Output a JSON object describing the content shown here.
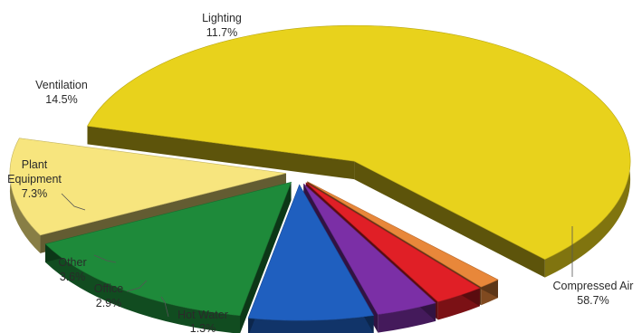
{
  "chart_data": {
    "type": "pie",
    "title": "",
    "exploded": true,
    "style": "3d",
    "legend": "none",
    "slices": [
      {
        "label": "Compressed Air",
        "value": 58.7,
        "value_label": "58.7%",
        "color": "#e8d21c"
      },
      {
        "label": "Hot Water",
        "value": 1.3,
        "value_label": "1.3%",
        "color": "#e8873a"
      },
      {
        "label": "Office",
        "value": 2.9,
        "value_label": "2.9%",
        "color": "#e01f26"
      },
      {
        "label": "Other",
        "value": 3.6,
        "value_label": "3.6%",
        "color": "#7b2fa6"
      },
      {
        "label": "Plant\nEquipment",
        "value": 7.3,
        "value_label": "7.3%",
        "color": "#1f5fbf"
      },
      {
        "label": "Ventilation",
        "value": 14.5,
        "value_label": "14.5%",
        "color": "#1e8a3a"
      },
      {
        "label": "Lighting",
        "value": 11.7,
        "value_label": "11.7%",
        "color": "#f7e57e"
      }
    ]
  }
}
